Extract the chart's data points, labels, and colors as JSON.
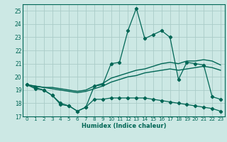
{
  "xlabel": "Humidex (Indice chaleur)",
  "xlim": [
    -0.5,
    23.5
  ],
  "ylim": [
    17,
    25.5
  ],
  "yticks": [
    17,
    18,
    19,
    20,
    21,
    22,
    23,
    24,
    25
  ],
  "xticks": [
    0,
    1,
    2,
    3,
    4,
    5,
    6,
    7,
    8,
    9,
    10,
    11,
    12,
    13,
    14,
    15,
    16,
    17,
    18,
    19,
    20,
    21,
    22,
    23
  ],
  "background_color": "#cce8e4",
  "grid_color": "#aaccc8",
  "line_color": "#006655",
  "line1": {
    "x": [
      0,
      1,
      2,
      3,
      4,
      5,
      6,
      7,
      8,
      9,
      10,
      11,
      12,
      13,
      14,
      15,
      16,
      17,
      18,
      19,
      20,
      21,
      22,
      23
    ],
    "y": [
      19.4,
      19.2,
      19.0,
      18.6,
      18.0,
      17.8,
      17.4,
      17.7,
      19.3,
      19.4,
      21.0,
      21.1,
      23.5,
      25.2,
      22.9,
      23.2,
      23.5,
      23.0,
      19.8,
      21.1,
      21.0,
      20.9,
      18.5,
      18.3
    ]
  },
  "line2": {
    "x": [
      0,
      1,
      2,
      3,
      4,
      5,
      6,
      7,
      8,
      9,
      10,
      11,
      12,
      13,
      14,
      15,
      16,
      17,
      18,
      19,
      20,
      21,
      22,
      23
    ],
    "y": [
      19.4,
      19.1,
      19.0,
      18.6,
      17.9,
      17.8,
      17.4,
      17.7,
      18.3,
      18.3,
      18.4,
      18.4,
      18.4,
      18.4,
      18.4,
      18.3,
      18.2,
      18.1,
      18.0,
      17.9,
      17.8,
      17.7,
      17.6,
      17.4
    ]
  },
  "line3": {
    "x": [
      0,
      1,
      2,
      3,
      4,
      5,
      6,
      7,
      8,
      9,
      10,
      11,
      12,
      13,
      14,
      15,
      16,
      17,
      18,
      19,
      20,
      21,
      22,
      23
    ],
    "y": [
      19.4,
      19.3,
      19.2,
      19.1,
      19.0,
      18.9,
      18.8,
      18.9,
      19.1,
      19.3,
      19.6,
      19.8,
      20.0,
      20.1,
      20.3,
      20.4,
      20.5,
      20.6,
      20.5,
      20.6,
      20.7,
      20.8,
      20.7,
      20.5
    ]
  },
  "line4": {
    "x": [
      0,
      1,
      2,
      3,
      4,
      5,
      6,
      7,
      8,
      9,
      10,
      11,
      12,
      13,
      14,
      15,
      16,
      17,
      18,
      19,
      20,
      21,
      22,
      23
    ],
    "y": [
      19.4,
      19.3,
      19.2,
      19.2,
      19.1,
      19.0,
      18.9,
      19.0,
      19.3,
      19.5,
      19.9,
      20.1,
      20.3,
      20.5,
      20.6,
      20.8,
      21.0,
      21.1,
      21.0,
      21.2,
      21.2,
      21.3,
      21.2,
      20.9
    ]
  }
}
